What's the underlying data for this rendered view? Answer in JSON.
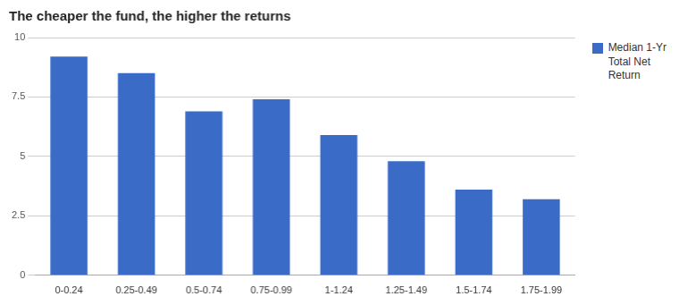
{
  "chart_data": {
    "type": "bar",
    "title": "The cheaper the fund, the higher the returns",
    "categories": [
      "0-0.24",
      "0.25-0.49",
      "0.5-0.74",
      "0.75-0.99",
      "1-1.24",
      "1.25-1.49",
      "1.5-1.74",
      "1.75-1.99"
    ],
    "series": [
      {
        "name": "Median 1-Yr\nTotal Net\nReturn",
        "color": "#3a6bc7",
        "values": [
          9.2,
          8.5,
          6.9,
          7.4,
          5.9,
          4.8,
          3.6,
          3.2
        ]
      }
    ],
    "ylim": [
      0,
      10
    ],
    "yticks": [
      0,
      2.5,
      5,
      7.5,
      10
    ],
    "grid": true,
    "legend": "right"
  }
}
